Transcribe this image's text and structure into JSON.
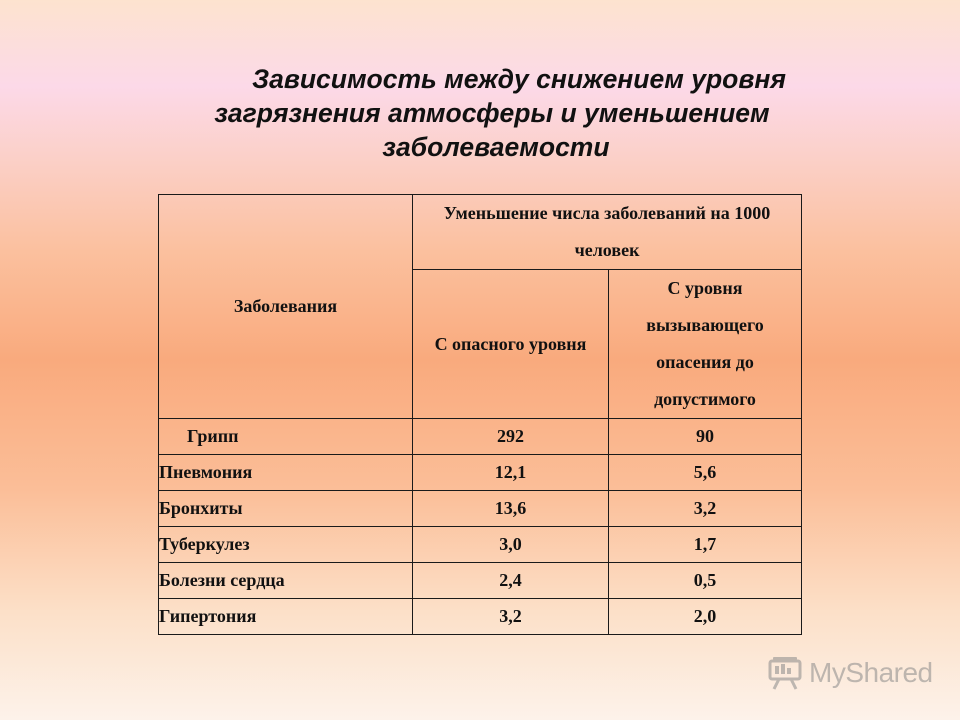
{
  "slide": {
    "title_lines": [
      "Зависимость между снижением уровня",
      "загрязнения атмосферы и уменьшением",
      "заболеваемости"
    ]
  },
  "table": {
    "header_disease": "Заболевания",
    "header_group": "Уменьшение числа заболеваний на 1000 человек",
    "header_col1": "С опасного уровня",
    "header_col2": "С уровня вызывающего опасения до допустимого",
    "rows": [
      {
        "name": "Грипп",
        "v1": "292",
        "v2": "90"
      },
      {
        "name": "Пневмония",
        "v1": "12,1",
        "v2": "5,6"
      },
      {
        "name": "Бронхиты",
        "v1": "13,6",
        "v2": "3,2"
      },
      {
        "name": "Туберкулез",
        "v1": "3,0",
        "v2": "1,7"
      },
      {
        "name": "Болезни сердца",
        "v1": "2,4",
        "v2": "0,5"
      },
      {
        "name": "Гипертония",
        "v1": "3,2",
        "v2": "2,0"
      }
    ]
  },
  "watermark": {
    "text": "MyShared",
    "icon": "presentation-board-icon"
  }
}
